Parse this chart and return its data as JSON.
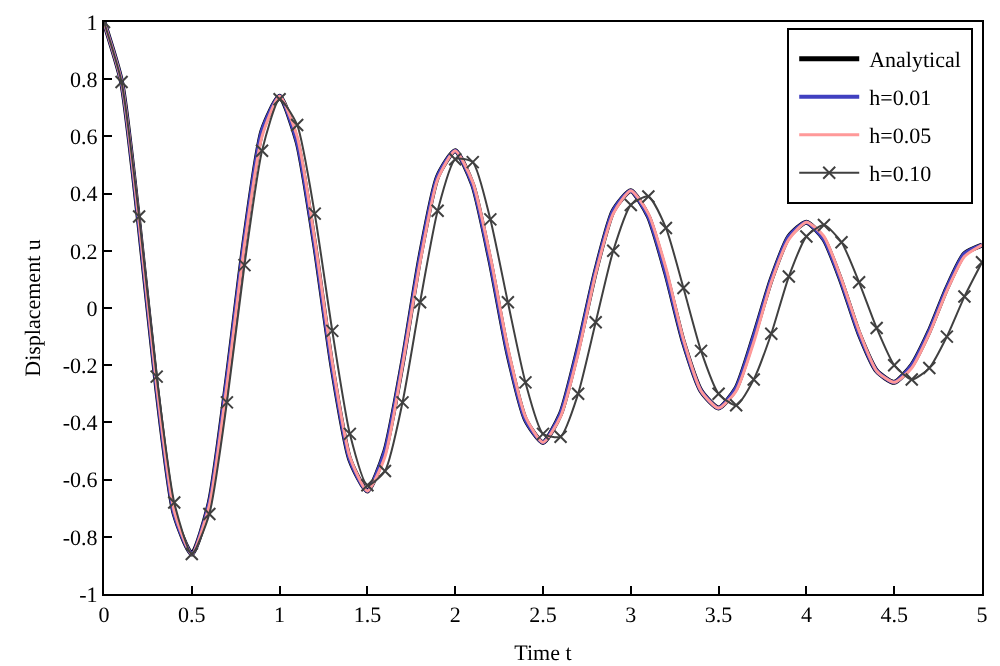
{
  "chart_data": {
    "type": "line",
    "xlabel": "Time t",
    "ylabel": "Displacement u",
    "x": [
      0,
      0.1,
      0.2,
      0.3,
      0.4,
      0.5,
      0.6,
      0.7,
      0.8,
      0.9,
      1,
      1.1,
      1.2,
      1.3,
      1.4,
      1.5,
      1.6,
      1.7,
      1.8,
      1.9,
      2,
      2.1,
      2.2,
      2.3,
      2.4,
      2.5,
      2.6,
      2.7,
      2.8,
      2.9,
      3,
      3.1,
      3.2,
      3.3,
      3.4,
      3.5,
      3.6,
      3.7,
      3.8,
      3.9,
      4,
      4.1,
      4.2,
      4.3,
      4.4,
      4.5,
      4.6,
      4.7,
      4.8,
      4.9,
      5
    ],
    "series": [
      {
        "name": "Analytical",
        "color": "#000000",
        "values": [
          1,
          0.79,
          0.29,
          -0.28,
          -0.72,
          -0.86,
          -0.68,
          -0.25,
          0.24,
          0.62,
          0.74,
          0.58,
          0.22,
          -0.21,
          -0.53,
          -0.64,
          -0.5,
          -0.19,
          0.18,
          0.46,
          0.55,
          0.43,
          0.16,
          -0.16,
          -0.39,
          -0.47,
          -0.37,
          -0.14,
          0.13,
          0.34,
          0.41,
          0.32,
          0.12,
          -0.12,
          -0.29,
          -0.35,
          -0.28,
          -0.1,
          0.1,
          0.25,
          0.3,
          0.24,
          0.09,
          -0.09,
          -0.22,
          -0.26,
          -0.2,
          -0.08,
          0.07,
          0.19,
          0.22
        ]
      },
      {
        "name": "h=0.01",
        "color": "#4040c0",
        "values": [
          1,
          0.79,
          0.29,
          -0.28,
          -0.72,
          -0.86,
          -0.68,
          -0.25,
          0.24,
          0.62,
          0.74,
          0.58,
          0.22,
          -0.21,
          -0.53,
          -0.64,
          -0.5,
          -0.19,
          0.18,
          0.46,
          0.55,
          0.43,
          0.16,
          -0.16,
          -0.39,
          -0.47,
          -0.37,
          -0.14,
          0.13,
          0.34,
          0.41,
          0.32,
          0.12,
          -0.12,
          -0.29,
          -0.35,
          -0.28,
          -0.1,
          0.1,
          0.25,
          0.3,
          0.24,
          0.09,
          -0.09,
          -0.22,
          -0.26,
          -0.2,
          -0.08,
          0.07,
          0.19,
          0.22
        ]
      },
      {
        "name": "h=0.05",
        "color": "#ff9999",
        "values": [
          1,
          0.79,
          0.3,
          -0.27,
          -0.71,
          -0.86,
          -0.69,
          -0.27,
          0.22,
          0.6,
          0.74,
          0.6,
          0.24,
          -0.19,
          -0.52,
          -0.64,
          -0.52,
          -0.2,
          0.16,
          0.45,
          0.55,
          0.44,
          0.18,
          -0.14,
          -0.38,
          -0.47,
          -0.38,
          -0.16,
          0.12,
          0.33,
          0.41,
          0.33,
          0.14,
          -0.11,
          -0.29,
          -0.35,
          -0.29,
          -0.12,
          0.09,
          0.24,
          0.3,
          0.25,
          0.1,
          -0.08,
          -0.22,
          -0.26,
          -0.21,
          -0.09,
          0.06,
          0.18,
          0.22
        ]
      },
      {
        "name": "h=0.10",
        "color": "#404040",
        "marker": "cross",
        "values": [
          1,
          0.79,
          0.32,
          -0.24,
          -0.68,
          -0.86,
          -0.72,
          -0.33,
          0.15,
          0.55,
          0.73,
          0.64,
          0.33,
          -0.08,
          -0.44,
          -0.62,
          -0.57,
          -0.33,
          0.02,
          0.34,
          0.52,
          0.51,
          0.31,
          0.02,
          -0.26,
          -0.44,
          -0.45,
          -0.3,
          -0.05,
          0.2,
          0.36,
          0.39,
          0.28,
          0.07,
          -0.15,
          -0.3,
          -0.34,
          -0.25,
          -0.09,
          0.11,
          0.25,
          0.29,
          0.23,
          0.09,
          -0.07,
          -0.2,
          -0.25,
          -0.21,
          -0.1,
          0.04,
          0.16
        ]
      }
    ],
    "xlim": [
      0,
      5
    ],
    "xticks": [
      0,
      0.5,
      1,
      1.5,
      2,
      2.5,
      3,
      3.5,
      4,
      4.5,
      5
    ],
    "ylim": [
      -1,
      1
    ],
    "yticks": [
      -1,
      -0.8,
      -0.6,
      -0.4,
      -0.2,
      0,
      0.2,
      0.4,
      0.6,
      0.8,
      1
    ],
    "grid": false,
    "legend": "top right",
    "marker": "none",
    "line_style": "solid"
  }
}
